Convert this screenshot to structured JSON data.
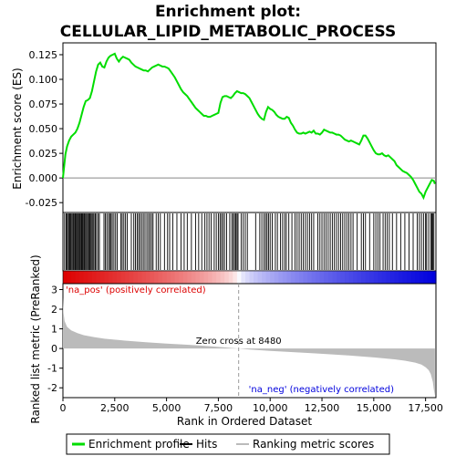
{
  "chart_data": {
    "type": "line",
    "title_line1": "Enrichment plot:",
    "title_line2": "CELLULAR_LIPID_METABOLIC_PROCESS",
    "es_panel": {
      "ylabel": "Enrichment score (ES)",
      "ylim": [
        -0.035,
        0.137
      ],
      "yticks": [
        -0.025,
        0.0,
        0.025,
        0.05,
        0.075,
        0.1,
        0.125
      ],
      "ytick_labels": [
        "-0.025",
        "0.000",
        "0.025",
        "0.050",
        "0.075",
        "0.100",
        "0.125"
      ],
      "color": "#00dd00",
      "profile": [
        [
          0,
          0.0
        ],
        [
          60,
          0.012
        ],
        [
          120,
          0.024
        ],
        [
          200,
          0.032
        ],
        [
          300,
          0.038
        ],
        [
          400,
          0.042
        ],
        [
          500,
          0.044
        ],
        [
          600,
          0.046
        ],
        [
          700,
          0.05
        ],
        [
          800,
          0.056
        ],
        [
          900,
          0.064
        ],
        [
          1000,
          0.072
        ],
        [
          1100,
          0.078
        ],
        [
          1200,
          0.079
        ],
        [
          1300,
          0.081
        ],
        [
          1400,
          0.088
        ],
        [
          1500,
          0.098
        ],
        [
          1600,
          0.108
        ],
        [
          1700,
          0.115
        ],
        [
          1800,
          0.117
        ],
        [
          1900,
          0.113
        ],
        [
          2000,
          0.112
        ],
        [
          2100,
          0.118
        ],
        [
          2200,
          0.122
        ],
        [
          2300,
          0.124
        ],
        [
          2400,
          0.125
        ],
        [
          2500,
          0.126
        ],
        [
          2600,
          0.121
        ],
        [
          2700,
          0.118
        ],
        [
          2800,
          0.121
        ],
        [
          2900,
          0.123
        ],
        [
          3000,
          0.122
        ],
        [
          3100,
          0.121
        ],
        [
          3200,
          0.12
        ],
        [
          3300,
          0.117
        ],
        [
          3400,
          0.115
        ],
        [
          3500,
          0.113
        ],
        [
          3600,
          0.112
        ],
        [
          3700,
          0.111
        ],
        [
          3800,
          0.11
        ],
        [
          3900,
          0.109
        ],
        [
          4000,
          0.109
        ],
        [
          4100,
          0.108
        ],
        [
          4200,
          0.11
        ],
        [
          4300,
          0.112
        ],
        [
          4400,
          0.113
        ],
        [
          4500,
          0.114
        ],
        [
          4600,
          0.115
        ],
        [
          4700,
          0.114
        ],
        [
          4800,
          0.113
        ],
        [
          4900,
          0.113
        ],
        [
          5000,
          0.112
        ],
        [
          5100,
          0.111
        ],
        [
          5200,
          0.108
        ],
        [
          5300,
          0.105
        ],
        [
          5400,
          0.102
        ],
        [
          5500,
          0.098
        ],
        [
          5600,
          0.094
        ],
        [
          5700,
          0.09
        ],
        [
          5800,
          0.087
        ],
        [
          5900,
          0.085
        ],
        [
          6000,
          0.083
        ],
        [
          6100,
          0.08
        ],
        [
          6200,
          0.077
        ],
        [
          6300,
          0.074
        ],
        [
          6400,
          0.071
        ],
        [
          6500,
          0.069
        ],
        [
          6600,
          0.067
        ],
        [
          6700,
          0.065
        ],
        [
          6800,
          0.063
        ],
        [
          6900,
          0.063
        ],
        [
          7000,
          0.062
        ],
        [
          7100,
          0.062
        ],
        [
          7200,
          0.063
        ],
        [
          7300,
          0.064
        ],
        [
          7400,
          0.065
        ],
        [
          7500,
          0.066
        ],
        [
          7600,
          0.076
        ],
        [
          7700,
          0.082
        ],
        [
          7800,
          0.083
        ],
        [
          7900,
          0.083
        ],
        [
          8000,
          0.082
        ],
        [
          8100,
          0.081
        ],
        [
          8200,
          0.083
        ],
        [
          8300,
          0.086
        ],
        [
          8400,
          0.088
        ],
        [
          8500,
          0.087
        ],
        [
          8600,
          0.086
        ],
        [
          8700,
          0.086
        ],
        [
          8800,
          0.085
        ],
        [
          8900,
          0.083
        ],
        [
          9000,
          0.081
        ],
        [
          9100,
          0.077
        ],
        [
          9200,
          0.073
        ],
        [
          9300,
          0.069
        ],
        [
          9400,
          0.065
        ],
        [
          9500,
          0.062
        ],
        [
          9600,
          0.06
        ],
        [
          9700,
          0.059
        ],
        [
          9800,
          0.067
        ],
        [
          9900,
          0.072
        ],
        [
          10000,
          0.07
        ],
        [
          10100,
          0.069
        ],
        [
          10200,
          0.067
        ],
        [
          10300,
          0.064
        ],
        [
          10400,
          0.062
        ],
        [
          10500,
          0.061
        ],
        [
          10600,
          0.06
        ],
        [
          10700,
          0.06
        ],
        [
          10800,
          0.062
        ],
        [
          10900,
          0.061
        ],
        [
          11000,
          0.056
        ],
        [
          11100,
          0.053
        ],
        [
          11200,
          0.049
        ],
        [
          11300,
          0.046
        ],
        [
          11400,
          0.045
        ],
        [
          11500,
          0.045
        ],
        [
          11600,
          0.046
        ],
        [
          11700,
          0.045
        ],
        [
          11800,
          0.046
        ],
        [
          11900,
          0.047
        ],
        [
          12000,
          0.046
        ],
        [
          12100,
          0.048
        ],
        [
          12200,
          0.045
        ],
        [
          12300,
          0.045
        ],
        [
          12400,
          0.044
        ],
        [
          12500,
          0.046
        ],
        [
          12600,
          0.049
        ],
        [
          12700,
          0.048
        ],
        [
          12800,
          0.047
        ],
        [
          12900,
          0.046
        ],
        [
          13000,
          0.046
        ],
        [
          13100,
          0.045
        ],
        [
          13200,
          0.044
        ],
        [
          13300,
          0.044
        ],
        [
          13400,
          0.043
        ],
        [
          13500,
          0.041
        ],
        [
          13600,
          0.039
        ],
        [
          13700,
          0.038
        ],
        [
          13800,
          0.037
        ],
        [
          13900,
          0.038
        ],
        [
          14000,
          0.037
        ],
        [
          14100,
          0.036
        ],
        [
          14200,
          0.035
        ],
        [
          14300,
          0.034
        ],
        [
          14400,
          0.038
        ],
        [
          14500,
          0.043
        ],
        [
          14600,
          0.043
        ],
        [
          14700,
          0.04
        ],
        [
          14800,
          0.036
        ],
        [
          14900,
          0.032
        ],
        [
          15000,
          0.028
        ],
        [
          15100,
          0.025
        ],
        [
          15200,
          0.024
        ],
        [
          15300,
          0.024
        ],
        [
          15400,
          0.025
        ],
        [
          15500,
          0.023
        ],
        [
          15600,
          0.022
        ],
        [
          15700,
          0.023
        ],
        [
          15800,
          0.021
        ],
        [
          15900,
          0.019
        ],
        [
          16000,
          0.017
        ],
        [
          16100,
          0.013
        ],
        [
          16200,
          0.011
        ],
        [
          16300,
          0.009
        ],
        [
          16400,
          0.007
        ],
        [
          16500,
          0.006
        ],
        [
          16600,
          0.005
        ],
        [
          16700,
          0.003
        ],
        [
          16800,
          0.001
        ],
        [
          16900,
          -0.002
        ],
        [
          17000,
          -0.006
        ],
        [
          17100,
          -0.01
        ],
        [
          17200,
          -0.014
        ],
        [
          17300,
          -0.016
        ],
        [
          17400,
          -0.02
        ],
        [
          17500,
          -0.014
        ],
        [
          17600,
          -0.01
        ],
        [
          17700,
          -0.006
        ],
        [
          17800,
          -0.002
        ],
        [
          17900,
          -0.003
        ],
        [
          17950,
          -0.006
        ]
      ]
    },
    "rank_panel": {
      "ylabel": "Ranked list metric (PreRanked)",
      "xlabel": "Rank in Ordered Dataset",
      "ylim": [
        -2.5,
        3.3
      ],
      "yticks": [
        -2,
        -1,
        0,
        1,
        2,
        3
      ],
      "ytick_labels": [
        "-2",
        "-1",
        "0",
        "1",
        "2",
        "3"
      ],
      "xlim": [
        0,
        18000
      ],
      "xticks": [
        0,
        2500,
        5000,
        7500,
        10000,
        12500,
        15000,
        17500
      ],
      "xtick_labels": [
        "0",
        "2,500",
        "5,000",
        "7,500",
        "10,000",
        "12,500",
        "15,000",
        "17,500"
      ],
      "fill_color": "#bbbbbb",
      "metric": [
        [
          0,
          2.6
        ],
        [
          30,
          1.8
        ],
        [
          80,
          1.4
        ],
        [
          200,
          1.1
        ],
        [
          400,
          0.92
        ],
        [
          700,
          0.78
        ],
        [
          1000,
          0.68
        ],
        [
          1500,
          0.58
        ],
        [
          2000,
          0.5
        ],
        [
          3000,
          0.4
        ],
        [
          4000,
          0.32
        ],
        [
          5000,
          0.25
        ],
        [
          6000,
          0.19
        ],
        [
          7000,
          0.12
        ],
        [
          8000,
          0.04
        ],
        [
          8480,
          0.0
        ],
        [
          9000,
          -0.05
        ],
        [
          10000,
          -0.12
        ],
        [
          11000,
          -0.18
        ],
        [
          12000,
          -0.24
        ],
        [
          13000,
          -0.3
        ],
        [
          14000,
          -0.37
        ],
        [
          15000,
          -0.45
        ],
        [
          16000,
          -0.55
        ],
        [
          16500,
          -0.62
        ],
        [
          17000,
          -0.72
        ],
        [
          17300,
          -0.82
        ],
        [
          17500,
          -0.95
        ],
        [
          17650,
          -1.1
        ],
        [
          17750,
          -1.3
        ],
        [
          17850,
          -1.7
        ],
        [
          17900,
          -2.1
        ],
        [
          17950,
          -2.4
        ]
      ],
      "zero_cross_rank": 8480,
      "zero_cross_label": "Zero cross at 8480",
      "pos_label": "'na_pos' (positively correlated)",
      "neg_label": "'na_neg' (negatively correlated)",
      "pos_color": "#dd0000",
      "neg_color": "#0000dd"
    },
    "hits": [
      80,
      150,
      200,
      260,
      300,
      340,
      380,
      430,
      480,
      520,
      570,
      610,
      650,
      700,
      740,
      790,
      830,
      880,
      920,
      960,
      1010,
      1050,
      1100,
      1150,
      1200,
      1250,
      1300,
      1350,
      1400,
      1450,
      1500,
      1560,
      1620,
      1700,
      1760,
      1980,
      2050,
      2120,
      2200,
      2260,
      2320,
      2380,
      2460,
      2540,
      2620,
      2800,
      2860,
      2940,
      3020,
      3100,
      3300,
      3420,
      3500,
      3580,
      3650,
      3720,
      3800,
      3880,
      3960,
      4050,
      4130,
      4200,
      4280,
      4350,
      4500,
      4600,
      4700,
      4900,
      5050,
      5150,
      5300,
      5500,
      5700,
      5850,
      6000,
      6200,
      6400,
      6550,
      6700,
      6850,
      6950,
      7050,
      7150,
      7300,
      7400,
      7500,
      7580,
      7650,
      7720,
      7800,
      7900,
      8050,
      8150,
      8220,
      8280,
      8340,
      8400,
      8450,
      8600,
      8700,
      8800,
      8900,
      9300,
      9500,
      9600,
      9700,
      9780,
      9850,
      9920,
      10000,
      10100,
      10250,
      10350,
      10500,
      10600,
      10700,
      10780,
      10900,
      11050,
      11200,
      11300,
      11400,
      11500,
      11600,
      11700,
      11800,
      11900,
      12000,
      12100,
      12300,
      12400,
      12500,
      12600,
      12700,
      12800,
      12900,
      13000,
      13100,
      13200,
      13300,
      13400,
      13500,
      13600,
      13700,
      13800,
      13900,
      14000,
      14200,
      14400,
      14500,
      14600,
      14800,
      15000,
      15100,
      15200,
      15300,
      15450,
      15550,
      15650,
      15750,
      15900,
      16100,
      16300,
      16500,
      16700,
      16900,
      17100,
      17200,
      17300,
      17400,
      17500,
      17550,
      17650,
      17750,
      17800,
      17850,
      17900
    ],
    "legend": {
      "placement": "bottom",
      "items": [
        {
          "label": "Enrichment profile",
          "color": "#00dd00",
          "style": "line"
        },
        {
          "label": "Hits",
          "color": "#000000",
          "style": "line"
        },
        {
          "label": "Ranking metric scores",
          "color": "#bbbbbb",
          "style": "line"
        }
      ]
    }
  }
}
